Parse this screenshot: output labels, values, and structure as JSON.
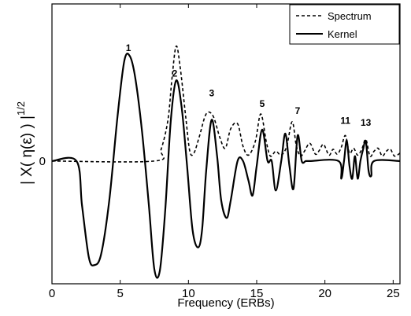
{
  "chart_data": {
    "type": "line",
    "xlabel": "Frequency (ERBs)",
    "ylabel": "| X( η(ε) ) |",
    "ylabel_exponent": "1/2",
    "xlim": [
      0,
      25.5
    ],
    "ylim": [
      -1.25,
      1.6
    ],
    "x_ticks": [
      0,
      5,
      10,
      15,
      20,
      25
    ],
    "y_ticks": [
      {
        "value": 0,
        "label": "0"
      }
    ],
    "grid": false,
    "legend": {
      "position": "top-right",
      "entries": [
        "Spectrum",
        "Kernel"
      ]
    },
    "peak_labels": [
      {
        "text": "1",
        "x": 5.6,
        "y": 1.12
      },
      {
        "text": "2",
        "x": 9.0,
        "y": 0.86
      },
      {
        "text": "3",
        "x": 11.7,
        "y": 0.66
      },
      {
        "text": "5",
        "x": 15.4,
        "y": 0.55
      },
      {
        "text": "7",
        "x": 18.0,
        "y": 0.48
      },
      {
        "text": "11",
        "x": 21.5,
        "y": 0.38
      },
      {
        "text": "13",
        "x": 23.0,
        "y": 0.36
      }
    ],
    "series": [
      {
        "name": "Spectrum",
        "style": "dashed",
        "x": [
          0,
          7.5,
          8.0,
          8.5,
          8.8,
          9.1,
          9.4,
          9.8,
          10.1,
          10.4,
          10.8,
          11.3,
          11.8,
          12.3,
          12.7,
          13.1,
          13.6,
          14.0,
          14.4,
          14.9,
          15.3,
          15.7,
          16.0,
          16.4,
          16.8,
          17.2,
          17.6,
          17.9,
          18.2,
          18.5,
          18.9,
          19.3,
          19.6,
          19.9,
          20.3,
          20.6,
          20.9,
          21.2,
          21.5,
          21.8,
          22.1,
          22.4,
          22.7,
          23.0,
          23.3,
          23.6,
          23.9,
          24.2,
          24.5,
          24.8,
          25.1,
          25.5
        ],
        "y": [
          0,
          0,
          0.12,
          0.42,
          0.85,
          1.17,
          0.95,
          0.45,
          0.1,
          0.08,
          0.25,
          0.48,
          0.46,
          0.24,
          0.13,
          0.33,
          0.38,
          0.15,
          0.06,
          0.2,
          0.48,
          0.2,
          0.05,
          0.1,
          0.06,
          0.15,
          0.4,
          0.16,
          0.05,
          0.1,
          0.18,
          0.07,
          0.11,
          0.17,
          0.06,
          0.12,
          0.07,
          0.14,
          0.26,
          0.08,
          0.13,
          0.06,
          0.12,
          0.22,
          0.05,
          0.1,
          0.13,
          0.05,
          0.1,
          0.12,
          0.05,
          0.08
        ]
      },
      {
        "name": "Kernel",
        "style": "solid",
        "x": [
          0,
          1.8,
          2.2,
          2.7,
          3.1,
          3.6,
          4.2,
          4.8,
          5.3,
          5.7,
          6.1,
          6.6,
          7.1,
          7.5,
          7.9,
          8.3,
          8.7,
          9.1,
          9.5,
          9.9,
          10.3,
          10.7,
          11.0,
          11.3,
          11.7,
          12.1,
          12.4,
          12.8,
          13.1,
          13.6,
          14.0,
          14.4,
          14.7,
          15.0,
          15.4,
          15.8,
          16.1,
          16.4,
          16.8,
          17.1,
          17.4,
          17.7,
          18.0,
          18.3,
          18.6,
          18.9,
          21.0,
          21.2,
          21.4,
          21.6,
          21.8,
          22.0,
          22.2,
          22.4,
          22.6,
          22.8,
          23.0,
          23.2,
          23.4,
          23.6,
          25.5
        ],
        "y": [
          0,
          0,
          -0.45,
          -0.98,
          -1.06,
          -0.95,
          -0.4,
          0.45,
          1.02,
          1.07,
          0.85,
          0.3,
          -0.45,
          -1.1,
          -1.12,
          -0.5,
          0.4,
          0.82,
          0.55,
          -0.05,
          -0.7,
          -0.88,
          -0.7,
          -0.1,
          0.42,
          0.05,
          -0.4,
          -0.58,
          -0.4,
          0,
          0,
          -0.2,
          -0.35,
          -0.05,
          0.32,
          0,
          0,
          -0.3,
          0,
          0.28,
          -0.05,
          -0.28,
          0.26,
          0,
          0,
          0,
          0,
          -0.18,
          0,
          0.21,
          -0.05,
          -0.18,
          0.05,
          -0.18,
          0,
          0.12,
          0.2,
          -0.1,
          -0.15,
          0,
          0
        ]
      }
    ]
  }
}
